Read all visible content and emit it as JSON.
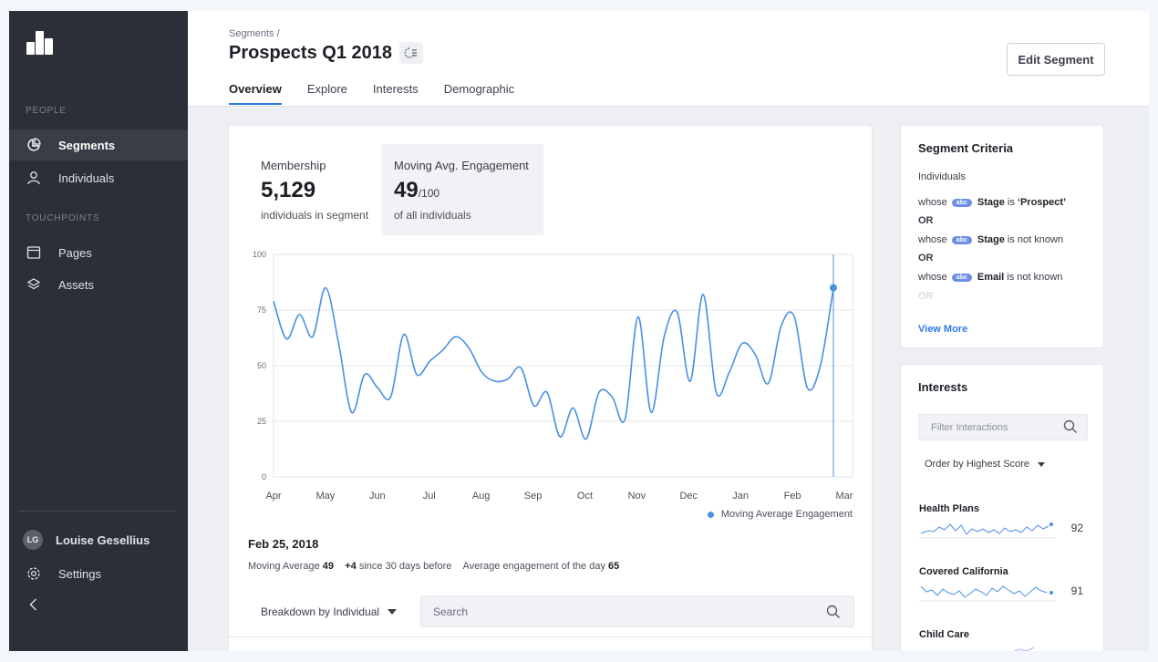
{
  "sidebar": {
    "section_people": "PEOPLE",
    "section_touchpoints": "TOUCHPOINTS",
    "items": [
      {
        "label": "Segments",
        "icon": "pie-chart-icon"
      },
      {
        "label": "Individuals",
        "icon": "user-icon"
      },
      {
        "label": "Pages",
        "icon": "page-icon"
      },
      {
        "label": "Assets",
        "icon": "layers-icon"
      }
    ],
    "user": {
      "initials": "LG",
      "name": "Louise Gesellius"
    },
    "settings_label": "Settings"
  },
  "header": {
    "breadcrumb": "Segments /",
    "title": "Prospects Q1 2018",
    "edit_button": "Edit Segment",
    "tabs": [
      "Overview",
      "Explore",
      "Interests",
      "Demographic"
    ],
    "active_tab": "Overview"
  },
  "metrics": {
    "membership_label": "Membership",
    "membership_value": "5,129",
    "membership_sub": "individuals in segment",
    "engagement_label": "Moving Avg. Engagement",
    "engagement_value": "49",
    "engagement_suffix": "/100",
    "engagement_sub": "of all individuals"
  },
  "chart_data": {
    "type": "line",
    "x_tick_labels": [
      "Apr",
      "May",
      "Jun",
      "Jul",
      "Aug",
      "Sep",
      "Oct",
      "Nov",
      "Dec",
      "Jan",
      "Feb",
      "Mar"
    ],
    "y_ticks": [
      0,
      25,
      50,
      75,
      100
    ],
    "ylim": [
      0,
      100
    ],
    "series": [
      {
        "name": "Moving Average Engagement",
        "color": "#4a90e2",
        "values": [
          79,
          62,
          73,
          63,
          85,
          60,
          29,
          46,
          40,
          36,
          64,
          46,
          52,
          57,
          63,
          58,
          47,
          43,
          44,
          49,
          32,
          38,
          18,
          31,
          17,
          38,
          36,
          26,
          72,
          29,
          63,
          74,
          43,
          82,
          38,
          47,
          60,
          55,
          42,
          68,
          72,
          40,
          50,
          85
        ]
      }
    ],
    "highlight_marker": {
      "label": "Feb 25, 2018",
      "value": 85
    },
    "legend_position": "bottom-right",
    "grid": true
  },
  "details": {
    "date": "Feb 25, 2018",
    "moving_avg_label": "Moving Average",
    "moving_avg_value": "49",
    "delta_value": "+4",
    "delta_text": "since 30 days before",
    "avg_day_label": "Average engagement of the day",
    "avg_day_value": "65"
  },
  "breakdown": {
    "label": "Breakdown by Individual",
    "search_placeholder": "Search"
  },
  "criteria": {
    "title": "Segment Criteria",
    "intro": "Individuals",
    "whose": "whose",
    "badge": "abc",
    "or": "OR",
    "rules": [
      {
        "field": "Stage",
        "op": "is",
        "value": "‘Prospect’"
      },
      {
        "field": "Stage",
        "op": "is not known",
        "value": ""
      },
      {
        "field": "Email",
        "op": "is not known",
        "value": ""
      }
    ],
    "view_more": "View More"
  },
  "interests": {
    "title": "Interests",
    "filter_placeholder": "Filter Interactions",
    "order_label": "Order by Highest Score",
    "items": [
      {
        "name": "Health Plans",
        "score": "92"
      },
      {
        "name": "Covered California",
        "score": "91"
      },
      {
        "name": "Child Care",
        "score": ""
      }
    ]
  }
}
